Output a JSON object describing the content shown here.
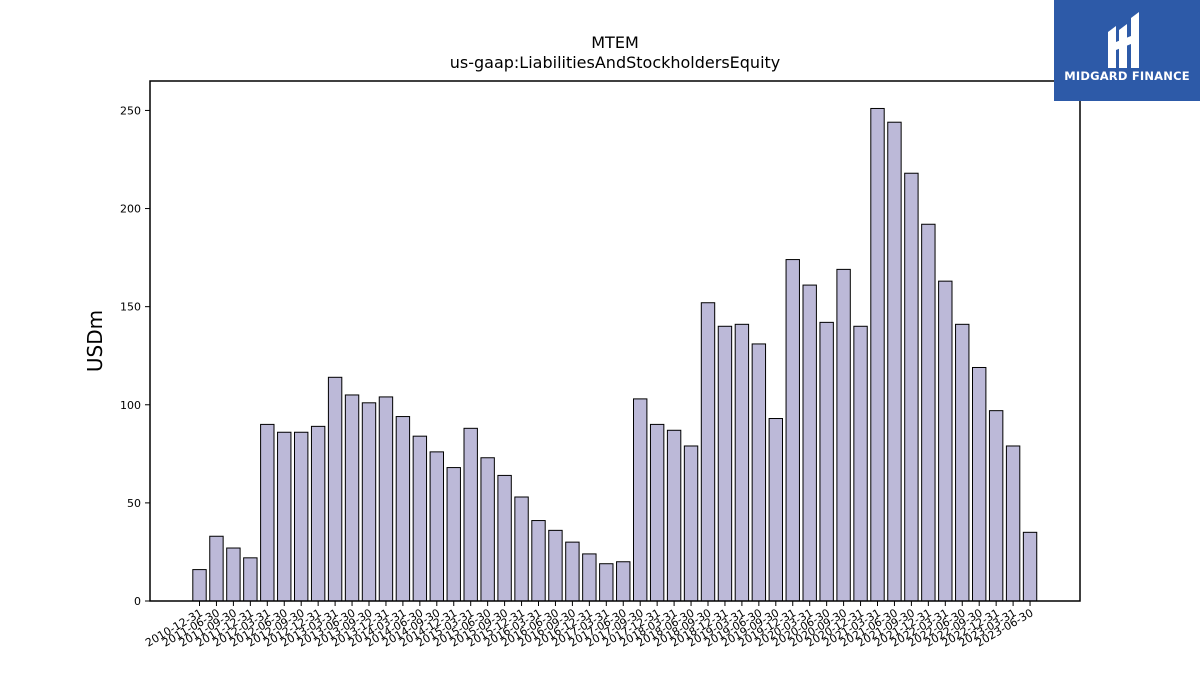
{
  "logo": {
    "text": "MIDGARD FINANCE",
    "icon": "midgard-logo-icon",
    "color": "#2d5aa8"
  },
  "chart_data": {
    "type": "bar",
    "title": "MTEM",
    "subtitle": "us-gaap:LiabilitiesAndStockholdersEquity",
    "xlabel": "",
    "ylabel": "USDm",
    "ylim": [
      0,
      265
    ],
    "yticks": [
      0,
      50,
      100,
      150,
      200,
      250
    ],
    "grid": false,
    "bar_color": "#bcb9d8",
    "categories": [
      "2010-12-31",
      "2011-06-30",
      "2011-09-30",
      "2011-12-31",
      "2012-03-31",
      "2012-06-30",
      "2012-09-30",
      "2012-12-31",
      "2013-03-31",
      "2013-06-30",
      "2013-09-30",
      "2013-12-31",
      "2014-03-31",
      "2014-06-30",
      "2014-09-30",
      "2014-12-31",
      "2015-03-31",
      "2015-06-30",
      "2015-09-30",
      "2015-12-31",
      "2016-03-31",
      "2016-06-30",
      "2016-09-30",
      "2016-12-31",
      "2017-03-31",
      "2017-06-30",
      "2017-09-30",
      "2017-12-31",
      "2018-03-31",
      "2018-06-30",
      "2018-09-30",
      "2018-12-31",
      "2019-03-31",
      "2019-06-30",
      "2019-09-30",
      "2019-12-31",
      "2020-03-31",
      "2020-06-30",
      "2020-09-30",
      "2020-12-31",
      "2021-03-31",
      "2021-06-30",
      "2021-09-30",
      "2021-12-31",
      "2022-03-31",
      "2022-06-30",
      "2022-09-30",
      "2022-12-31",
      "2023-03-31",
      "2023-06-30"
    ],
    "values": [
      16,
      33,
      27,
      22,
      90,
      86,
      86,
      89,
      114,
      105,
      101,
      104,
      94,
      84,
      76,
      68,
      88,
      73,
      64,
      53,
      41,
      36,
      30,
      24,
      19,
      20,
      103,
      90,
      87,
      79,
      152,
      140,
      141,
      131,
      93,
      174,
      161,
      142,
      169,
      140,
      251,
      244,
      218,
      192,
      163,
      141,
      119,
      97,
      79,
      35
    ]
  }
}
